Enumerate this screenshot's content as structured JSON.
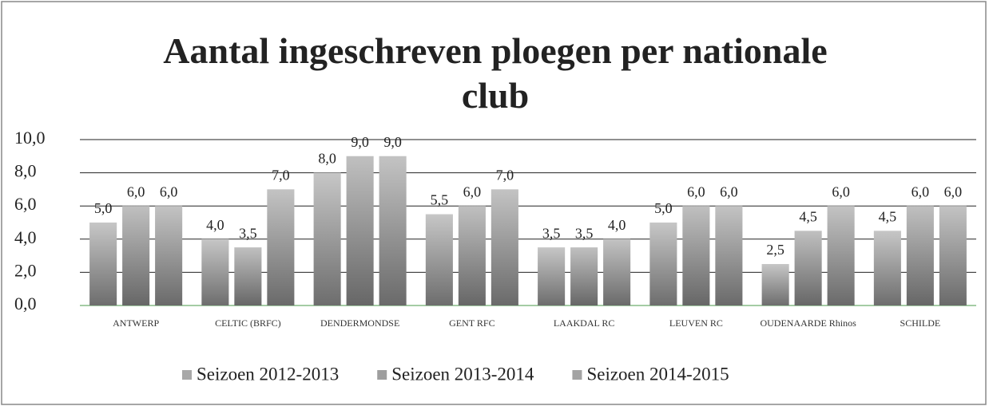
{
  "chart_data": {
    "type": "bar",
    "title": "Aantal ingeschreven ploegen per nationale club",
    "categories": [
      "ANTWERP",
      "CELTIC (BRFC)",
      "DENDERMONDSE",
      "GENT RFC",
      "LAAKDAL RC",
      "LEUVEN RC",
      "OUDENAARDE Rhinos",
      "SCHILDE"
    ],
    "series": [
      {
        "name": "Seizoen 2012-2013",
        "color": "#a8a8a8",
        "values": [
          5,
          4,
          8,
          5.5,
          3.5,
          5,
          2.5,
          4.5
        ],
        "value_labels": [
          "5,0",
          "4,0",
          "8,0",
          "5,5",
          "3,5",
          "5,0",
          "2,5",
          "4,5"
        ]
      },
      {
        "name": "Seizoen 2013-2014",
        "color": "#9e9e9e",
        "values": [
          6,
          3.5,
          9,
          6,
          3.5,
          6,
          4.5,
          6
        ],
        "value_labels": [
          "6,0",
          "3,5",
          "9,0",
          "6,0",
          "3,5",
          "6,0",
          "4,5",
          "6,0"
        ]
      },
      {
        "name": "Seizoen 2014-2015",
        "color": "#a3a3a3",
        "values": [
          6,
          7,
          9,
          7,
          4,
          6,
          6,
          6
        ],
        "value_labels": [
          "6,0",
          "7,0",
          "9,0",
          "7,0",
          "4,0",
          "6,0",
          "6,0",
          "6,0"
        ]
      }
    ],
    "ylim": [
      0,
      10
    ],
    "yticks": [
      {
        "value": 0,
        "label": "0,0"
      },
      {
        "value": 2,
        "label": "2,0"
      },
      {
        "value": 4,
        "label": "4,0"
      },
      {
        "value": 6,
        "label": "6,0"
      },
      {
        "value": 8,
        "label": "8,0"
      },
      {
        "value": 10,
        "label": "10,0"
      }
    ],
    "grid": true,
    "legend": "bottom"
  }
}
